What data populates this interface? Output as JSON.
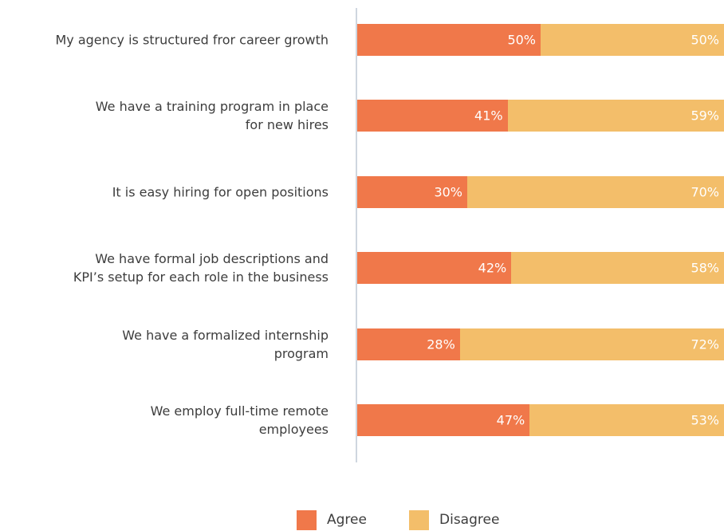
{
  "chart_data": {
    "type": "stacked-barh",
    "categories": [
      "My agency is structured fror career growth",
      "We have a training program in place\nfor new hires",
      "It is easy hiring for open positions",
      "We have formal job descriptions and\nKPI’s setup for each role in the business",
      "We have a formalized internship\nprogram",
      "We employ full-time remote\nemployees"
    ],
    "series": [
      {
        "name": "Agree",
        "color": "#f0784a",
        "values": [
          50,
          41,
          30,
          42,
          28,
          47
        ],
        "value_labels": [
          "50%",
          "41%",
          "30%",
          "42%",
          "28%",
          "47%"
        ]
      },
      {
        "name": "Disagree",
        "color": "#f3be6a",
        "values": [
          50,
          59,
          70,
          58,
          72,
          53
        ],
        "value_labels": [
          "50%",
          "59%",
          "70%",
          "58%",
          "72%",
          "53%"
        ]
      }
    ],
    "xlim": [
      0,
      100
    ],
    "legend": "bottom"
  }
}
